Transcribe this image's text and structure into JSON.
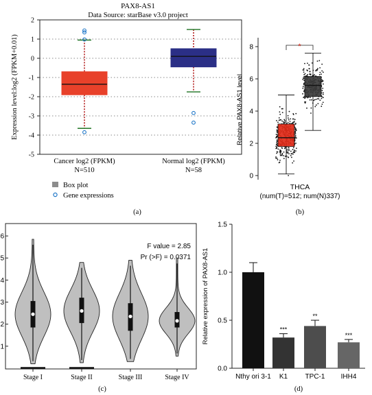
{
  "colors": {
    "cancer_red": "#e8412a",
    "normal_navy": "#2b2f86",
    "whisker_green": "#2e7d32",
    "dotted_red": "#b31b1b",
    "outlier_blue": "#1f77c8",
    "thca_red": "#e02a18",
    "thca_dark": "#3a3a3a",
    "violin_fill": "#bfbfbf",
    "bar_black": "#111111",
    "bar_darkgrey": "#333333",
    "bar_grey": "#4d4d4d",
    "bar_lightgrey": "#666666"
  },
  "chart_data": [
    {
      "panel": "a",
      "type": "box",
      "title": "PAX8-AS1",
      "subtitle": "Data Source: starBase v3.0 project",
      "ylabel": "Expression level:log2 (FPKM+0.01)",
      "ylim": [
        -5,
        2
      ],
      "yticks": [
        -5,
        -4,
        -3,
        -2,
        -1,
        0,
        1,
        2
      ],
      "grid": true,
      "series": [
        {
          "label": "Cancer log2 (FPKM)",
          "n_label": "N=510",
          "q1": -1.9,
          "median": -1.35,
          "q3": -0.7,
          "whisker_low": -3.65,
          "whisker_high": 0.95,
          "outliers": [
            1.45,
            1.35,
            0.98,
            -3.85
          ]
        },
        {
          "label": "Normal log2 (FPKM)",
          "n_label": "N=58",
          "q1": -0.45,
          "median": 0.1,
          "q3": 0.5,
          "whisker_low": -1.75,
          "whisker_high": 1.5,
          "outliers": [
            -2.85,
            -3.35
          ]
        }
      ],
      "legend": [
        "Box plot",
        "Gene expressions"
      ],
      "panel_label": "(a)"
    },
    {
      "panel": "b",
      "type": "box",
      "ylabel": "Relative PAX8-AS1 level",
      "ylim": [
        0,
        8
      ],
      "yticks": [
        0,
        2,
        4,
        6,
        8
      ],
      "series": [
        {
          "name": "T",
          "q1": 1.8,
          "median": 2.35,
          "q3": 3.2,
          "whisker_low": 0.1,
          "whisker_high": 5.0
        },
        {
          "name": "N",
          "q1": 4.9,
          "median": 5.6,
          "q3": 6.15,
          "whisker_low": 2.8,
          "whisker_high": 7.6
        }
      ],
      "significance": "*",
      "category": "THCA",
      "n_label": "(num(T)=512; num(N)337)",
      "panel_label": "(b)"
    },
    {
      "panel": "c",
      "type": "violin",
      "ylim": [
        0,
        6.5
      ],
      "yticks": [
        1,
        2,
        3,
        4,
        5,
        6
      ],
      "annotations": [
        "F value = 2.85",
        "Pr (>F) = 0.0371"
      ],
      "categories": [
        "Stage I",
        "Stage II",
        "Stage III",
        "Stage IV"
      ],
      "medians": [
        2.45,
        2.6,
        2.35,
        2.15
      ],
      "q1": [
        1.85,
        2.05,
        1.7,
        1.85
      ],
      "q3": [
        3.05,
        3.2,
        2.95,
        2.55
      ],
      "min": [
        0.2,
        0.25,
        0.3,
        0.55
      ],
      "max": [
        5.85,
        4.8,
        4.9,
        5.0
      ],
      "panel_label": "(c)"
    },
    {
      "panel": "d",
      "type": "bar",
      "ylabel": "Relative expression of PAX8-AS1",
      "ylim": [
        0,
        1.5
      ],
      "yticks": [
        "0.0",
        "0.5",
        "1.0",
        "1.5"
      ],
      "categories": [
        "Nthy ori 3-1",
        "K1",
        "TPC-1",
        "IHH4"
      ],
      "values": [
        1.0,
        0.32,
        0.44,
        0.27
      ],
      "errors": [
        0.1,
        0.04,
        0.06,
        0.03
      ],
      "significance": [
        "",
        "***",
        "**",
        "***"
      ],
      "panel_label": "(d)"
    }
  ]
}
